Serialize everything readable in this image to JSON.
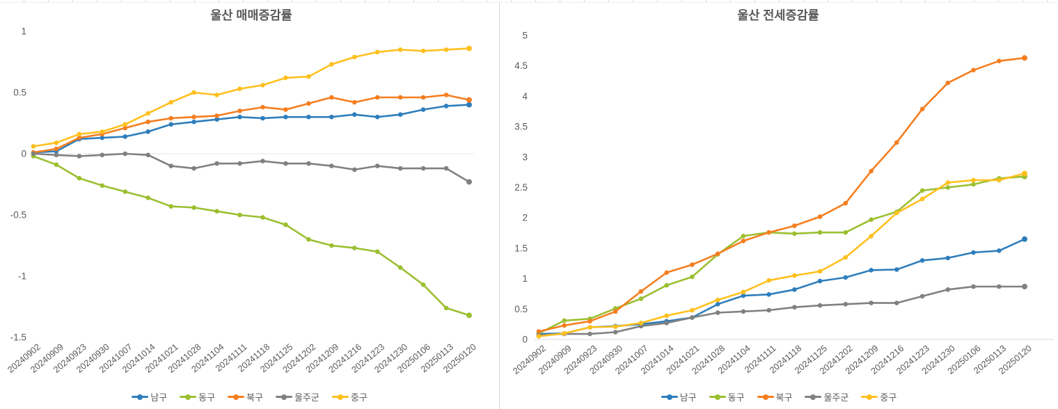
{
  "page": {
    "background": "#ffffff",
    "divider_color": "#d5d5d5",
    "text_color": "#595959"
  },
  "legend": [
    {
      "label": "남구",
      "slug": "namgu",
      "color": "#2E7EBC"
    },
    {
      "label": "동구",
      "slug": "donggu",
      "color": "#9BBF30"
    },
    {
      "label": "북구",
      "slug": "bukgu",
      "color": "#F57E20"
    },
    {
      "label": "울주군",
      "slug": "uljugun",
      "color": "#808080"
    },
    {
      "label": "중구",
      "slug": "junggu",
      "color": "#FFC01E"
    }
  ],
  "chart_data": [
    {
      "type": "line",
      "title": "울산 매매증감률",
      "xlabel": "",
      "ylabel": "",
      "ylim": [
        -1.5,
        1
      ],
      "ytick_step": 0.5,
      "grid": "zero-line-only",
      "legend_position": "bottom",
      "categories": [
        "20240902",
        "20240909",
        "20240923",
        "20240930",
        "20241007",
        "20241014",
        "20241021",
        "20241028",
        "20241104",
        "20241111",
        "20241118",
        "20241125",
        "20241202",
        "20241209",
        "20241216",
        "20241223",
        "20241230",
        "20250106",
        "20250113",
        "20250120"
      ],
      "series": [
        {
          "name": "남구",
          "slug": "namgu",
          "color": "#2E7EBC",
          "values": [
            0.01,
            0.02,
            0.12,
            0.13,
            0.14,
            0.18,
            0.24,
            0.26,
            0.28,
            0.3,
            0.29,
            0.3,
            0.3,
            0.3,
            0.32,
            0.3,
            0.32,
            0.36,
            0.39,
            0.4
          ]
        },
        {
          "name": "동구",
          "slug": "donggu",
          "color": "#9BBF30",
          "values": [
            -0.02,
            -0.09,
            -0.2,
            -0.26,
            -0.31,
            -0.36,
            -0.43,
            -0.44,
            -0.47,
            -0.5,
            -0.52,
            -0.58,
            -0.7,
            -0.75,
            -0.77,
            -0.8,
            -0.93,
            -1.07,
            -1.26,
            -1.32
          ]
        },
        {
          "name": "북구",
          "slug": "bukgu",
          "color": "#F57E20",
          "values": [
            0.01,
            0.04,
            0.13,
            0.16,
            0.21,
            0.26,
            0.29,
            0.3,
            0.31,
            0.35,
            0.38,
            0.36,
            0.41,
            0.46,
            0.42,
            0.46,
            0.46,
            0.46,
            0.48,
            0.44
          ]
        },
        {
          "name": "울주군",
          "slug": "uljugun",
          "color": "#808080",
          "values": [
            0.0,
            -0.01,
            -0.02,
            -0.01,
            0.0,
            -0.01,
            -0.1,
            -0.12,
            -0.08,
            -0.08,
            -0.06,
            -0.08,
            -0.08,
            -0.1,
            -0.13,
            -0.1,
            -0.12,
            -0.12,
            -0.12,
            -0.23
          ]
        },
        {
          "name": "중구",
          "slug": "junggu",
          "color": "#FFC01E",
          "values": [
            0.06,
            0.09,
            0.16,
            0.18,
            0.24,
            0.33,
            0.42,
            0.5,
            0.48,
            0.53,
            0.56,
            0.62,
            0.63,
            0.73,
            0.79,
            0.83,
            0.85,
            0.84,
            0.85,
            0.86
          ]
        }
      ]
    },
    {
      "type": "line",
      "title": "울산 전세증감률",
      "xlabel": "",
      "ylabel": "",
      "ylim": [
        0,
        5
      ],
      "ytick_step": 0.5,
      "grid": "axis-line-only",
      "legend_position": "bottom",
      "categories": [
        "20240902",
        "20240909",
        "20240923",
        "20240930",
        "20241007",
        "20241014",
        "20241021",
        "20241028",
        "20241104",
        "20241111",
        "20241118",
        "20241125",
        "20241202",
        "20241209",
        "20241216",
        "20241223",
        "20241230",
        "20250106",
        "20250113",
        "20250120"
      ],
      "series": [
        {
          "name": "남구",
          "slug": "namgu",
          "color": "#2E7EBC",
          "values": [
            0.09,
            0.1,
            0.2,
            0.22,
            0.25,
            0.3,
            0.36,
            0.58,
            0.72,
            0.74,
            0.82,
            0.96,
            1.02,
            1.14,
            1.15,
            1.3,
            1.34,
            1.43,
            1.46,
            1.65
          ]
        },
        {
          "name": "동구",
          "slug": "donggu",
          "color": "#9BBF30",
          "values": [
            0.1,
            0.31,
            0.34,
            0.51,
            0.67,
            0.89,
            1.03,
            1.4,
            1.7,
            1.76,
            1.74,
            1.76,
            1.76,
            1.97,
            2.1,
            2.45,
            2.5,
            2.55,
            2.65,
            2.68
          ]
        },
        {
          "name": "북구",
          "slug": "bukgu",
          "color": "#F57E20",
          "values": [
            0.13,
            0.23,
            0.3,
            0.46,
            0.79,
            1.1,
            1.23,
            1.41,
            1.62,
            1.76,
            1.87,
            2.02,
            2.24,
            2.77,
            3.24,
            3.79,
            4.22,
            4.43,
            4.58,
            4.63
          ]
        },
        {
          "name": "울주군",
          "slug": "uljugun",
          "color": "#808080",
          "values": [
            0.07,
            0.09,
            0.09,
            0.12,
            0.22,
            0.27,
            0.36,
            0.44,
            0.46,
            0.48,
            0.53,
            0.56,
            0.58,
            0.6,
            0.6,
            0.71,
            0.82,
            0.87,
            0.87,
            0.87
          ]
        },
        {
          "name": "중구",
          "slug": "junggu",
          "color": "#FFC01E",
          "values": [
            0.05,
            0.1,
            0.2,
            0.21,
            0.27,
            0.39,
            0.48,
            0.65,
            0.78,
            0.97,
            1.05,
            1.12,
            1.35,
            1.7,
            2.08,
            2.31,
            2.58,
            2.62,
            2.62,
            2.73
          ]
        }
      ]
    }
  ]
}
